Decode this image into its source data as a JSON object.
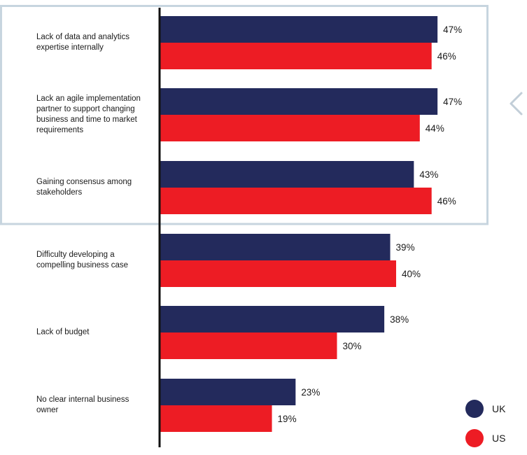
{
  "chart_data": {
    "type": "bar",
    "orientation": "horizontal",
    "categories": [
      "Lack of data and analytics expertise internally",
      "Lack an agile implementation partner to support changing business and time to market requirements",
      "Gaining consensus among stakeholders",
      "Difficulty developing a compelling business case",
      "Lack of budget",
      "No clear internal business owner"
    ],
    "series": [
      {
        "name": "UK",
        "color": "#232a5c",
        "values": [
          47,
          47,
          43,
          39,
          38,
          23
        ]
      },
      {
        "name": "US",
        "color": "#ed1c24",
        "values": [
          46,
          44,
          46,
          40,
          30,
          19
        ]
      }
    ],
    "value_suffix": "%",
    "xlim": [
      0,
      50
    ],
    "grid": false,
    "legend_position": "bottom-right",
    "highlight_categories": [
      0,
      1,
      2
    ],
    "highlight_color": "#c7d5df",
    "nav_icon": "chevron-left-icon",
    "nav_icon_color": "#c2ced8"
  }
}
